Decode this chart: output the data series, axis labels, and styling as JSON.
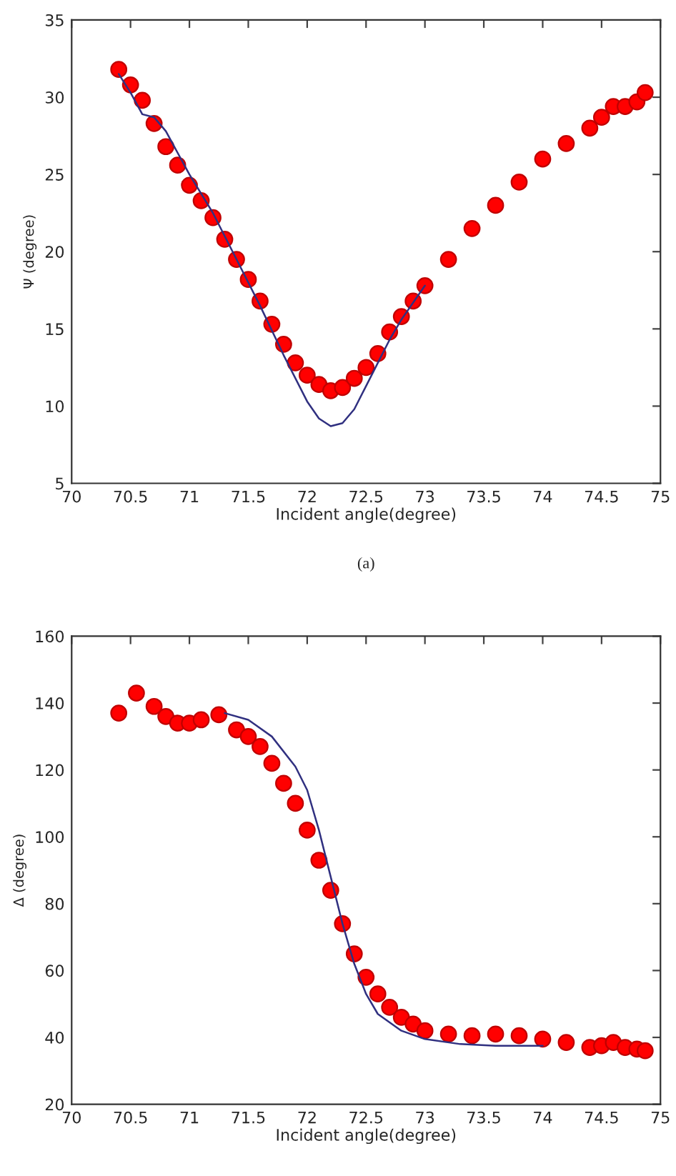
{
  "chart_data": [
    {
      "type": "scatter",
      "xlabel": "Incident angle(degree)",
      "ylabel": "Ψ (degree)",
      "annotations": [
        "(a)"
      ],
      "xlim": [
        70,
        75
      ],
      "ylim": [
        5,
        35
      ],
      "xticks": [
        70,
        70.5,
        71,
        71.5,
        72,
        72.5,
        73,
        73.5,
        74,
        74.5,
        75
      ],
      "yticks": [
        5,
        10,
        15,
        20,
        25,
        30,
        35
      ],
      "grid": false,
      "legend": false,
      "series": [
        {
          "marker": "circle",
          "color": "#ff0000",
          "x": [
            70.4,
            70.5,
            70.6,
            70.7,
            70.8,
            70.9,
            71.0,
            71.1,
            71.2,
            71.3,
            71.4,
            71.5,
            71.6,
            71.7,
            71.8,
            71.9,
            72.0,
            72.1,
            72.2,
            72.3,
            72.4,
            72.5,
            72.6,
            72.7,
            72.8,
            72.9,
            73.0,
            73.2,
            73.4,
            73.6,
            73.8,
            74.0,
            74.2,
            74.4,
            74.5,
            74.6,
            74.7,
            74.8,
            74.87
          ],
          "values": [
            31.8,
            30.8,
            29.8,
            28.3,
            26.8,
            25.6,
            24.3,
            23.3,
            22.2,
            20.8,
            19.5,
            18.2,
            16.8,
            15.3,
            14.0,
            12.8,
            12.0,
            11.4,
            11.0,
            11.2,
            11.8,
            12.5,
            13.4,
            14.8,
            15.8,
            16.8,
            17.8,
            19.5,
            21.5,
            23.0,
            24.5,
            26.0,
            27.0,
            28.0,
            28.7,
            29.4,
            29.4,
            29.7,
            30.3
          ]
        },
        {
          "type": "line",
          "marker": "none",
          "color": "#303080",
          "x": [
            70.4,
            70.5,
            70.6,
            70.7,
            70.8,
            71.0,
            71.2,
            71.4,
            71.6,
            71.8,
            72.0,
            72.1,
            72.2,
            72.3,
            72.4,
            72.5,
            72.6,
            72.7,
            72.8,
            73.0
          ],
          "values": [
            31.5,
            30.3,
            28.9,
            28.7,
            27.8,
            25.0,
            22.5,
            19.5,
            16.5,
            13.3,
            10.3,
            9.2,
            8.7,
            8.9,
            9.8,
            11.3,
            12.8,
            14.3,
            15.6,
            17.8
          ]
        }
      ]
    },
    {
      "type": "scatter",
      "xlabel": "Incident angle(degree)",
      "ylabel": "Δ (degree)",
      "xlim": [
        70,
        75
      ],
      "ylim": [
        20,
        160
      ],
      "xticks": [
        70,
        70.5,
        71,
        71.5,
        72,
        72.5,
        73,
        73.5,
        74,
        74.5,
        75
      ],
      "yticks": [
        20,
        40,
        60,
        80,
        100,
        120,
        140,
        160
      ],
      "grid": false,
      "legend": false,
      "series": [
        {
          "marker": "circle",
          "color": "#ff0000",
          "x": [
            70.4,
            70.55,
            70.7,
            70.8,
            70.9,
            71.0,
            71.1,
            71.25,
            71.4,
            71.5,
            71.6,
            71.7,
            71.8,
            71.9,
            72.0,
            72.1,
            72.2,
            72.3,
            72.4,
            72.5,
            72.6,
            72.7,
            72.8,
            72.9,
            73.0,
            73.2,
            73.4,
            73.6,
            73.8,
            74.0,
            74.2,
            74.4,
            74.5,
            74.6,
            74.7,
            74.8,
            74.87
          ],
          "values": [
            137,
            143,
            139,
            136,
            134,
            134,
            135,
            136.5,
            132,
            130,
            127,
            122,
            116,
            110,
            102,
            93,
            84,
            74,
            65,
            58,
            53,
            49,
            46,
            44,
            42,
            41,
            40.5,
            41,
            40.5,
            39.5,
            38.5,
            37,
            37.5,
            38.5,
            37,
            36.5,
            36
          ]
        },
        {
          "type": "line",
          "marker": "none",
          "color": "#303080",
          "x": [
            71.3,
            71.5,
            71.7,
            71.9,
            72.0,
            72.1,
            72.2,
            72.3,
            72.4,
            72.5,
            72.6,
            72.8,
            73.0,
            73.3,
            73.6,
            74.0
          ],
          "values": [
            137,
            135,
            130,
            121,
            114,
            102,
            88,
            74,
            62,
            53,
            47,
            42,
            39.5,
            38,
            37.5,
            37.5
          ]
        }
      ]
    }
  ]
}
